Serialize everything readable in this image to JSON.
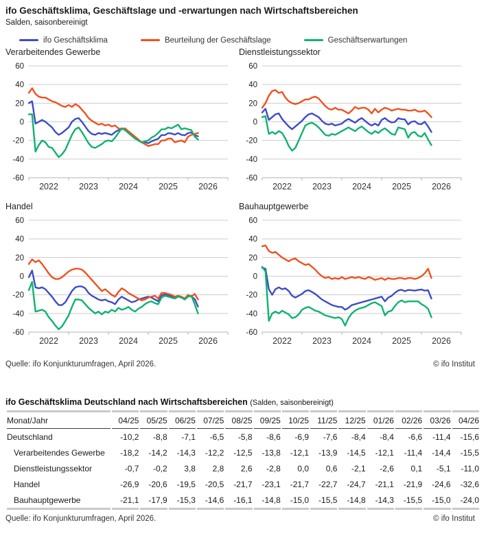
{
  "header": {
    "title": "ifo Geschäftsklima, Geschäftslage und -erwartungen nach Wirtschaftsbereichen",
    "subtitle": "Salden, saisonbereinigt"
  },
  "colors": {
    "klima": "#3c4bc8",
    "lage": "#f0511e",
    "erwartungen": "#0db36e",
    "grid": "#cccccc",
    "axis": "#b3b3b3",
    "tick_text": "#222222"
  },
  "legend": [
    {
      "label": "ifo Geschäftsklima",
      "series": "klima"
    },
    {
      "label": "Beurteilung der Geschäftslage",
      "series": "lage"
    },
    {
      "label": "Geschäftserwartungen",
      "series": "erwartungen"
    }
  ],
  "chart_data": [
    {
      "type": "line",
      "title": "Verarbeitendes Gewerbe",
      "ylim": [
        -60,
        60
      ],
      "yticks": [
        60,
        40,
        20,
        0,
        -20,
        -40,
        -60
      ],
      "x_years": [
        "2022",
        "2023",
        "2024",
        "2025",
        "2026"
      ],
      "x_monthly_start": "2022-01",
      "x_monthly_end": "2026-04",
      "grid": "horizontal",
      "series": [
        {
          "name": "ifo Geschäftsklima",
          "key": "klima",
          "values": [
            20,
            22,
            -2,
            0,
            2,
            0,
            -3,
            -6,
            -11,
            -14,
            -12,
            -9,
            -6,
            0,
            3,
            4,
            0,
            -5,
            -10,
            -13,
            -14,
            -12,
            -13,
            -12,
            -13,
            -14,
            -11,
            -9,
            -7,
            -8,
            -11,
            -14,
            -17,
            -20,
            -22,
            -22,
            -23,
            -21,
            -19.5,
            -18.2,
            -14.2,
            -14.3,
            -12.2,
            -12.5,
            -13.8,
            -12.1,
            -13.9,
            -14.5,
            -12.1,
            -11.4,
            -14.4,
            -15.5
          ]
        },
        {
          "name": "Beurteilung der Geschäftslage",
          "key": "lage",
          "values": [
            31,
            36,
            30,
            27,
            26,
            26,
            24,
            22,
            21,
            19,
            17,
            16,
            18,
            16,
            19,
            17,
            13,
            9,
            4,
            1,
            -1,
            -3,
            -2,
            -4,
            -3,
            -5,
            -4,
            -7,
            -8,
            -7,
            -10,
            -13,
            -16,
            -19,
            -22,
            -24,
            -26,
            -25,
            -24,
            -24,
            -20,
            -20,
            -18,
            -18,
            -22,
            -21,
            -20,
            -22,
            -16,
            -14,
            -13,
            -12
          ]
        },
        {
          "name": "Geschäftserwartungen",
          "key": "erwartungen",
          "values": [
            8,
            8,
            -32,
            -25,
            -20,
            -22,
            -27,
            -28,
            -33,
            -38,
            -35,
            -30,
            -22,
            -14,
            -8,
            -6,
            -11,
            -17,
            -23,
            -27,
            -28,
            -26,
            -24,
            -21,
            -20,
            -21,
            -17,
            -12,
            -7,
            -9,
            -12,
            -15,
            -18,
            -20,
            -22,
            -21,
            -20,
            -17,
            -15,
            -12,
            -8,
            -8,
            -6,
            -7,
            -5,
            -3,
            -8,
            -7,
            -8,
            -9,
            -16,
            -19
          ]
        }
      ]
    },
    {
      "type": "line",
      "title": "Dienstleistungssektor",
      "ylim": [
        -60,
        60
      ],
      "yticks": [
        60,
        40,
        20,
        0,
        -20,
        -40,
        -60
      ],
      "x_years": [
        "2022",
        "2023",
        "2024",
        "2025",
        "2026"
      ],
      "x_monthly_start": "2022-01",
      "x_monthly_end": "2026-04",
      "grid": "horizontal",
      "series": [
        {
          "name": "ifo Geschäftsklima",
          "key": "klima",
          "values": [
            10,
            14,
            2,
            5,
            8,
            9,
            3,
            -1,
            -5,
            -8,
            -5,
            -2,
            1,
            5,
            8,
            9,
            7,
            5,
            1,
            -2,
            -3,
            -2,
            -4,
            -3,
            -2,
            1,
            3,
            1,
            -1,
            2,
            4,
            1,
            -2,
            -4,
            -2,
            -4,
            2,
            4,
            1,
            -0.7,
            -0.2,
            3.8,
            2.8,
            2.6,
            -2.8,
            0,
            0.6,
            -2.1,
            -2.6,
            0.1,
            -5.1,
            -11
          ]
        },
        {
          "name": "Beurteilung der Geschäftslage",
          "key": "lage",
          "values": [
            15,
            20,
            28,
            33,
            34,
            31,
            32,
            26,
            22,
            20,
            19,
            20,
            22,
            24,
            24,
            26,
            27,
            25,
            21,
            17,
            14,
            13,
            15,
            13,
            13,
            11,
            9,
            12,
            16,
            14,
            15,
            15,
            13,
            9,
            14,
            10,
            13,
            15,
            14,
            12,
            13,
            14,
            13,
            13,
            12,
            12,
            13,
            11,
            11,
            12,
            9,
            5
          ]
        },
        {
          "name": "Geschäftserwartungen",
          "key": "erwartungen",
          "values": [
            5,
            6,
            -13,
            -11,
            -13,
            -10,
            -12,
            -18,
            -26,
            -31,
            -28,
            -20,
            -12,
            -4,
            -2,
            -1,
            -3,
            -6,
            -10,
            -14,
            -15,
            -13,
            -14,
            -12,
            -10,
            -8,
            -6,
            -8,
            -10,
            -7,
            -5,
            -8,
            -11,
            -13,
            -10,
            -12,
            -9,
            -7,
            -10,
            -13,
            -14,
            -6,
            -7,
            -8,
            -17,
            -12,
            -11,
            -15,
            -16,
            -12,
            -19,
            -25
          ]
        }
      ]
    },
    {
      "type": "line",
      "title": "Handel",
      "ylim": [
        -60,
        60
      ],
      "yticks": [
        60,
        40,
        20,
        0,
        -20,
        -40,
        -60
      ],
      "x_years": [
        "2022",
        "2023",
        "2024",
        "2025",
        "2026"
      ],
      "x_monthly_start": "2022-01",
      "x_monthly_end": "2026-04",
      "grid": "horizontal",
      "series": [
        {
          "name": "ifo Geschäftsklima",
          "key": "klima",
          "values": [
            -1,
            6,
            -12,
            -13,
            -12,
            -14,
            -18,
            -22,
            -27,
            -31,
            -31,
            -28,
            -22,
            -16,
            -12,
            -11,
            -11,
            -13,
            -18,
            -21,
            -23,
            -25,
            -26,
            -25,
            -27,
            -28,
            -30,
            -25,
            -22,
            -24,
            -26,
            -28,
            -27,
            -25,
            -24,
            -23,
            -22,
            -23,
            -25,
            -26.9,
            -20.6,
            -19.5,
            -20.5,
            -21.7,
            -23.1,
            -21.7,
            -22.7,
            -24.7,
            -21.1,
            -21.9,
            -24.6,
            -32.6
          ]
        },
        {
          "name": "Beurteilung der Geschäftslage",
          "key": "lage",
          "values": [
            13,
            18,
            15,
            17,
            13,
            8,
            3,
            -1,
            -3,
            -3,
            -1,
            2,
            5,
            7,
            8,
            8,
            7,
            4,
            0,
            -4,
            -8,
            -12,
            -16,
            -14,
            -17,
            -20,
            -22,
            -17,
            -13,
            -15,
            -18,
            -20,
            -22,
            -24,
            -26,
            -25,
            -23,
            -22,
            -21,
            -24,
            -18,
            -18,
            -19,
            -20,
            -22,
            -21,
            -22,
            -24,
            -20,
            -22,
            -19,
            -25
          ]
        },
        {
          "name": "Geschäftserwartungen",
          "key": "erwartungen",
          "values": [
            -15,
            -6,
            -38,
            -37,
            -36,
            -38,
            -44,
            -48,
            -53,
            -57,
            -54,
            -48,
            -42,
            -33,
            -25,
            -25,
            -26,
            -30,
            -34,
            -37,
            -40,
            -38,
            -41,
            -38,
            -39,
            -36,
            -38,
            -34,
            -36,
            -35,
            -33,
            -36,
            -38,
            -35,
            -33,
            -30,
            -28,
            -27,
            -29,
            -30,
            -23,
            -21,
            -22,
            -23,
            -24,
            -22,
            -23,
            -25,
            -22,
            -21,
            -30,
            -40
          ]
        }
      ]
    },
    {
      "type": "line",
      "title": "Bauhauptgewerbe",
      "ylim": [
        -60,
        60
      ],
      "yticks": [
        60,
        40,
        20,
        0,
        -20,
        -40,
        -60
      ],
      "x_years": [
        "2022",
        "2023",
        "2024",
        "2025",
        "2026"
      ],
      "x_monthly_start": "2022-01",
      "x_monthly_end": "2026-04",
      "grid": "horizontal",
      "series": [
        {
          "name": "ifo Geschäftsklima",
          "key": "klima",
          "values": [
            9,
            8,
            -14,
            -20,
            -14,
            -12,
            -14,
            -13,
            -16,
            -21,
            -23,
            -21,
            -19,
            -16,
            -15,
            -17,
            -19,
            -22,
            -25,
            -27,
            -29,
            -31,
            -32,
            -33,
            -33,
            -36,
            -34,
            -31,
            -30,
            -29,
            -28,
            -27,
            -26,
            -25,
            -24,
            -23,
            -22,
            -27,
            -23,
            -21.1,
            -17.9,
            -15.3,
            -14.6,
            -16.1,
            -14.8,
            -15,
            -15.5,
            -14.8,
            -14.3,
            -15.5,
            -15,
            -24
          ]
        },
        {
          "name": "Beurteilung der Geschäftslage",
          "key": "lage",
          "values": [
            32,
            33,
            27,
            25,
            26,
            23,
            20,
            18,
            16,
            18,
            19,
            16,
            14,
            12,
            13,
            10,
            7,
            3,
            0,
            -2,
            -1,
            -3,
            -2,
            -3,
            -1,
            -3,
            -2,
            -1,
            -2,
            -1,
            -2,
            -3,
            -1,
            -2,
            -4,
            -3,
            -2,
            -4,
            -2,
            -3,
            -3,
            -2,
            -2,
            -3,
            -2,
            -2,
            -3,
            -2,
            0,
            3,
            8,
            -2
          ]
        },
        {
          "name": "Geschäftserwartungen",
          "key": "erwartungen",
          "values": [
            10,
            5,
            -48,
            -40,
            -38,
            -40,
            -37,
            -39,
            -41,
            -45,
            -44,
            -41,
            -36,
            -34,
            -33,
            -35,
            -37,
            -38,
            -40,
            -42,
            -43,
            -44,
            -45,
            -44,
            -46,
            -53,
            -45,
            -40,
            -37,
            -35,
            -34,
            -33,
            -31,
            -29,
            -28,
            -30,
            -32,
            -42,
            -38,
            -37,
            -32,
            -28,
            -26,
            -28,
            -27,
            -27,
            -27,
            -27,
            -30,
            -32,
            -35,
            -44
          ]
        }
      ]
    }
  ],
  "charts_footer": {
    "source": "Quelle: ifo Konjunkturumfragen, April 2026.",
    "copyright": "© ifo Institut"
  },
  "table": {
    "title": "ifo Geschäftsklima Deutschland nach Wirtschaftsbereichen",
    "title_note": "(Salden, saisonbereinigt)",
    "corner_label": "Monat/Jahr",
    "columns": [
      "04/25",
      "05/25",
      "06/25",
      "07/25",
      "08/25",
      "09/25",
      "10/25",
      "11/25",
      "12/25",
      "01/26",
      "02/26",
      "03/26",
      "04/26"
    ],
    "rows": [
      {
        "label": "Deutschland",
        "indent": false,
        "values": [
          "-10,2",
          "-8,8",
          "-7,1",
          "-6,5",
          "-5,8",
          "-8,6",
          "-6,9",
          "-7,6",
          "-8,4",
          "-8,4",
          "-6,6",
          "-11,4",
          "-15,6"
        ]
      },
      {
        "label": "Verarbeitendes Gewerbe",
        "indent": true,
        "values": [
          "-18,2",
          "-14,2",
          "-14,3",
          "-12,2",
          "-12,5",
          "-13,8",
          "-12,1",
          "-13,9",
          "-14,5",
          "-12,1",
          "-11,4",
          "-14,4",
          "-15,5"
        ]
      },
      {
        "label": "Dienstleistungssektor",
        "indent": true,
        "values": [
          "-0,7",
          "-0,2",
          "3,8",
          "2,8",
          "2,6",
          "-2,8",
          "0,0",
          "0,6",
          "-2,1",
          "-2,6",
          "0,1",
          "-5,1",
          "-11,0"
        ]
      },
      {
        "label": "Handel",
        "indent": true,
        "values": [
          "-26,9",
          "-20,6",
          "-19,5",
          "-20,5",
          "-21,7",
          "-23,1",
          "-21,7",
          "-22,7",
          "-24,7",
          "-21,1",
          "-21,9",
          "-24,6",
          "-32,6"
        ]
      },
      {
        "label": "Bauhauptgewerbe",
        "indent": true,
        "values": [
          "-21,1",
          "-17,9",
          "-15,3",
          "-14,6",
          "-16,1",
          "-14,8",
          "-15,0",
          "-15,5",
          "-14,8",
          "-14,3",
          "-15,5",
          "-15,0",
          "-24,0"
        ]
      }
    ]
  },
  "table_footer": {
    "source": "Quelle: ifo Konjunkturumfragen, April 2026.",
    "copyright": "© ifo Institut"
  }
}
